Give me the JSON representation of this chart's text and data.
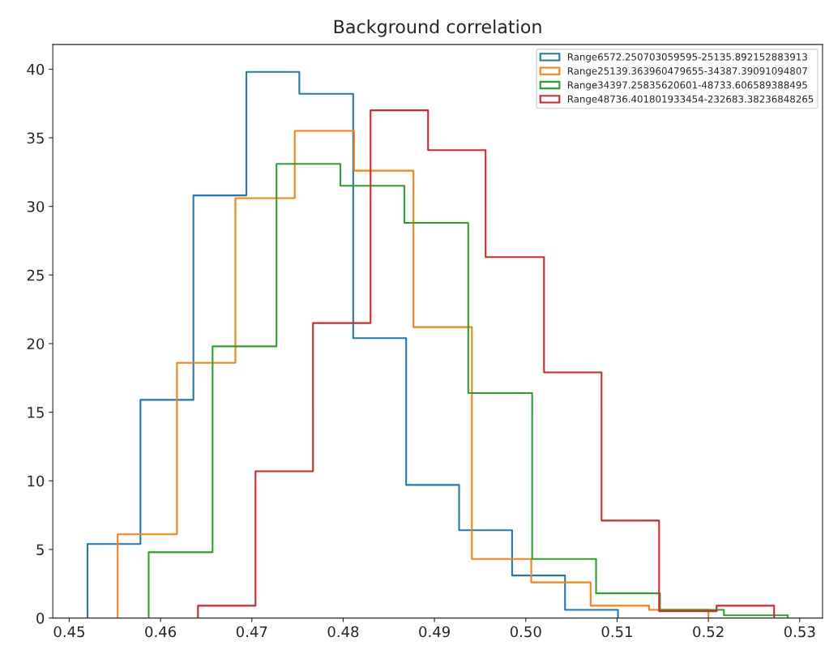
{
  "chart_data": {
    "type": "step",
    "title": "Background correlation",
    "series": [
      {
        "name": "Range6572.250703059595-25135.892152883913",
        "color": "#1f77b4",
        "x": [
          0.452,
          0.452,
          0.4578,
          0.4636,
          0.4694,
          0.4752,
          0.4811,
          0.4869,
          0.4927,
          0.4985,
          0.5043,
          0.5101
        ],
        "values": [
          0,
          5.4,
          15.9,
          30.8,
          39.8,
          38.2,
          20.4,
          9.7,
          6.4,
          3.1,
          0.6,
          0
        ]
      },
      {
        "name": "Range25139.363960479655-34387.39091094807",
        "color": "#ff7f0e",
        "x": [
          0.4553,
          0.4553,
          0.4618,
          0.4682,
          0.4747,
          0.4812,
          0.4877,
          0.4941,
          0.5006,
          0.5071,
          0.5135,
          0.52
        ],
        "values": [
          0,
          6.1,
          18.6,
          30.6,
          35.5,
          32.6,
          21.2,
          4.3,
          2.6,
          0.9,
          0.6,
          0
        ]
      },
      {
        "name": "Range34397.25835620601-48733.606589388495",
        "color": "#2ca02c",
        "x": [
          0.4587,
          0.4587,
          0.4657,
          0.4727,
          0.4797,
          0.4867,
          0.4937,
          0.5007,
          0.5077,
          0.5147,
          0.5217,
          0.5287
        ],
        "values": [
          0,
          4.8,
          19.8,
          33.1,
          31.5,
          28.8,
          16.4,
          4.3,
          1.8,
          0.6,
          0.2,
          0
        ]
      },
      {
        "name": "Range48736.401801933454-232683.38236848265",
        "color": "#d62728",
        "x": [
          0.4641,
          0.4641,
          0.4704,
          0.4767,
          0.483,
          0.4893,
          0.4956,
          0.502,
          0.5083,
          0.5146,
          0.5209,
          0.5272
        ],
        "values": [
          0,
          0.9,
          10.7,
          21.5,
          37.0,
          34.1,
          26.3,
          17.9,
          7.1,
          0.5,
          0.9,
          0
        ]
      }
    ],
    "xlim": [
      0.4482,
      0.5325
    ],
    "ylim": [
      0,
      41.8
    ],
    "xticks": [
      {
        "value": 0.45,
        "label": "0.45"
      },
      {
        "value": 0.46,
        "label": "0.46"
      },
      {
        "value": 0.47,
        "label": "0.47"
      },
      {
        "value": 0.48,
        "label": "0.48"
      },
      {
        "value": 0.49,
        "label": "0.49"
      },
      {
        "value": 0.5,
        "label": "0.50"
      },
      {
        "value": 0.51,
        "label": "0.51"
      },
      {
        "value": 0.52,
        "label": "0.52"
      },
      {
        "value": 0.53,
        "label": "0.53"
      }
    ],
    "yticks": [
      0,
      5,
      10,
      15,
      20,
      25,
      30,
      35,
      40
    ],
    "legend": "top right"
  }
}
